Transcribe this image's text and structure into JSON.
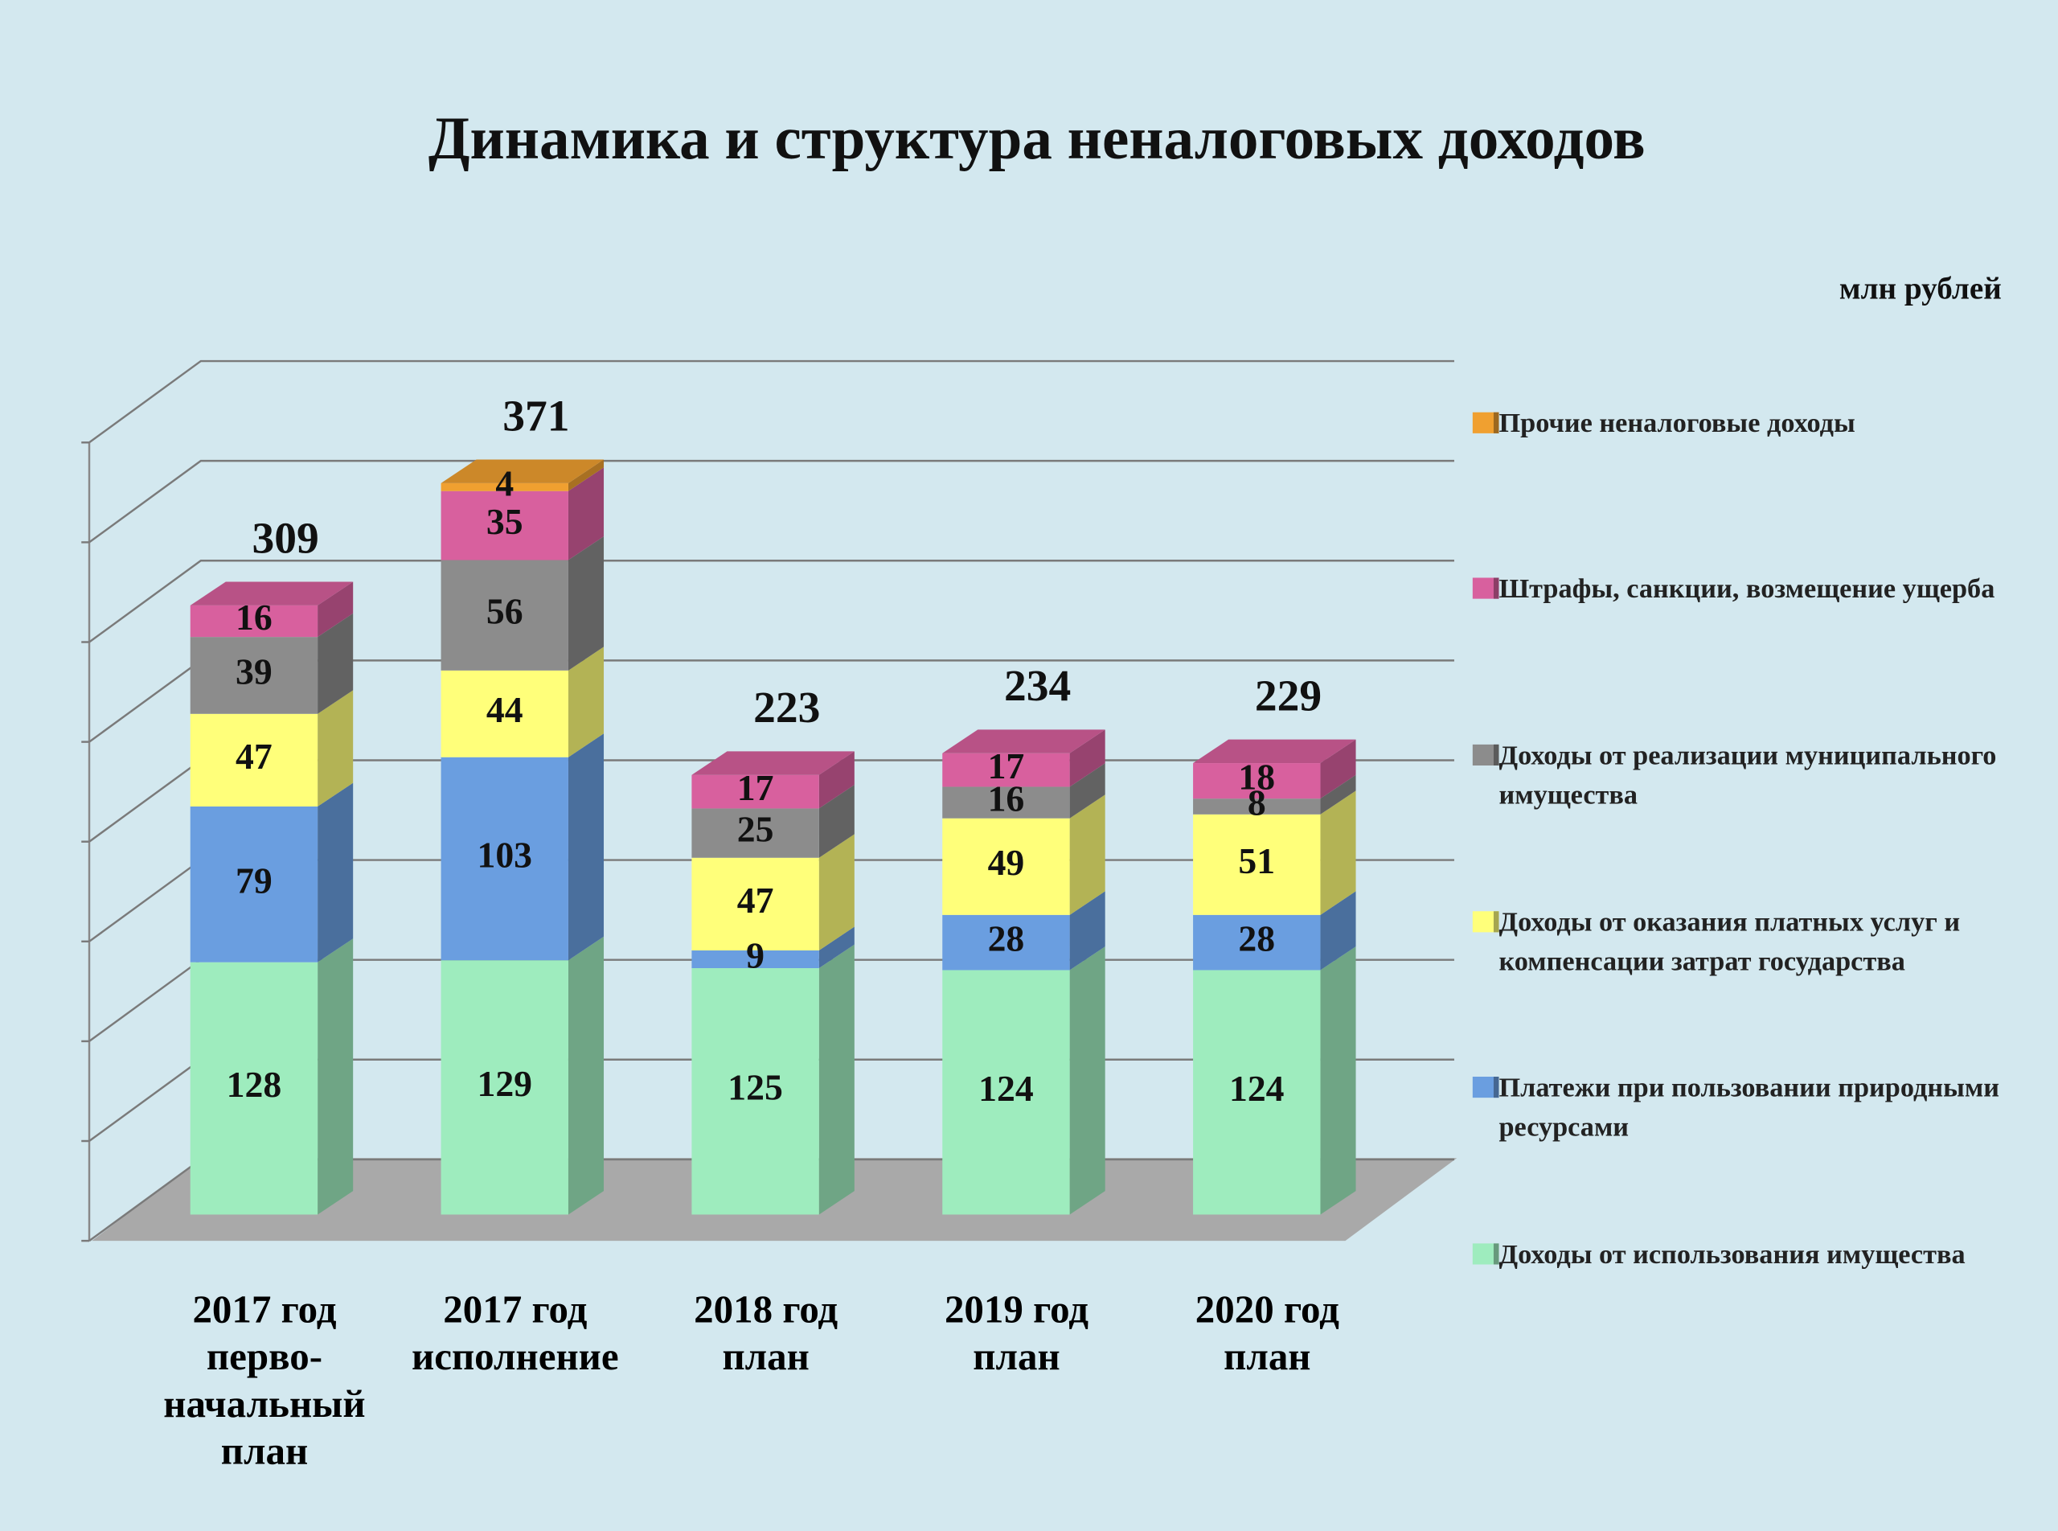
{
  "chart_data": {
    "type": "bar3d_stacked",
    "title": "Динамика  и  структура неналоговых доходов",
    "unit": "млн рублей",
    "categories": [
      [
        "2017 год",
        "перво-",
        "начальный",
        "план"
      ],
      [
        "2017 год",
        "исполнение"
      ],
      [
        "2018 год",
        "план"
      ],
      [
        "2019 год",
        "план"
      ],
      [
        "2020 год",
        "план"
      ]
    ],
    "series": [
      {
        "name": "Доходы от использования имущества",
        "color": "#9eecbe",
        "values": [
          128,
          129,
          125,
          124,
          124
        ]
      },
      {
        "name": "Платежи при пользовании природными ресурсами",
        "color": "#6a9ee0",
        "values": [
          79,
          103,
          9,
          28,
          28
        ]
      },
      {
        "name": "Доходы от оказания платных услуг и компенсации затрат государства",
        "color": "#ffff7a",
        "values": [
          47,
          44,
          47,
          49,
          51
        ]
      },
      {
        "name": "Доходы от реализации муниципального имущества",
        "color": "#8c8c8c",
        "values": [
          39,
          56,
          25,
          16,
          8
        ]
      },
      {
        "name": "Штрафы, санкции, возмещение ущерба",
        "color": "#d8609e",
        "values": [
          16,
          35,
          17,
          17,
          18
        ]
      },
      {
        "name": "Прочие неналоговые доходы",
        "color": "#f0a030",
        "values": [
          null,
          4,
          null,
          null,
          null
        ]
      }
    ],
    "totals": [
      309,
      371,
      223,
      234,
      229
    ],
    "ylim": [
      0,
      400
    ],
    "yticks": [
      0,
      50,
      100,
      150,
      200,
      250,
      300,
      350,
      400
    ],
    "grid": true
  }
}
